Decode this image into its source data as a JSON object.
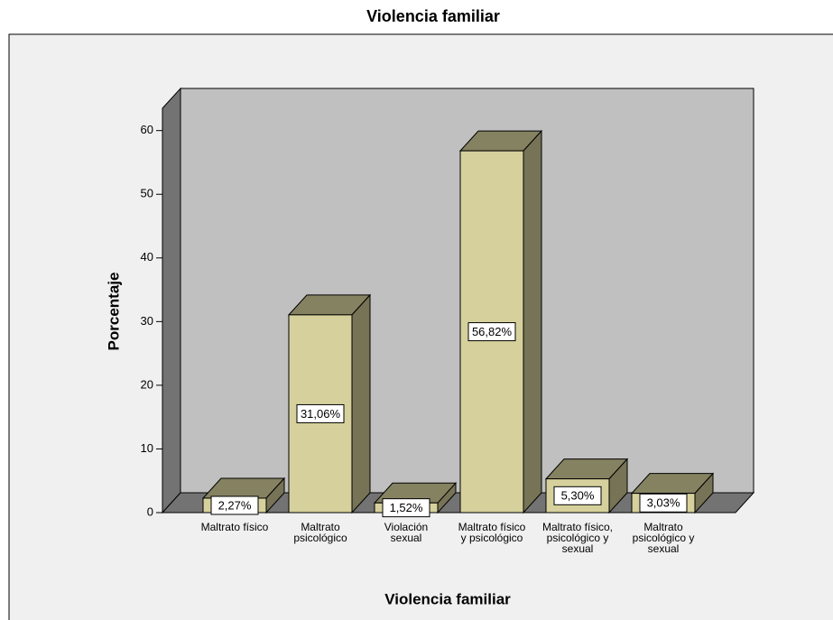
{
  "chart_data": {
    "type": "bar3d",
    "title": "Violencia familiar",
    "x_label": "Violencia familiar",
    "y_label": "Porcentaje",
    "categories": [
      "Maltrato físico",
      "Maltrato psicológico",
      "Violación sexual",
      "Maltrato físico y psicológico",
      "Maltrato físico, psicológico y sexual",
      "Maltrato psicológico y sexual"
    ],
    "values": [
      2.27,
      31.06,
      1.52,
      56.82,
      5.3,
      3.03
    ],
    "value_labels": [
      "2,27%",
      "31,06%",
      "1,52%",
      "56,82%",
      "5,30%",
      "3,03%"
    ],
    "color": "#d6d19c",
    "ylim": [
      0,
      63.5
    ],
    "yticks": [
      0,
      10,
      20,
      30,
      40,
      50,
      60
    ]
  }
}
